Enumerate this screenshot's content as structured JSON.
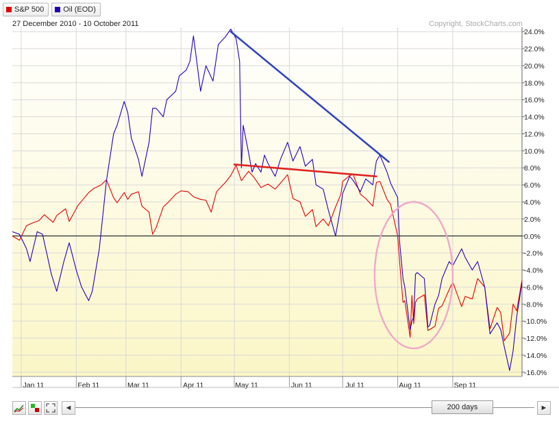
{
  "legend": {
    "items": [
      {
        "label": "S&P 500",
        "color": "#e00000"
      },
      {
        "label": "Oil (EOD)",
        "color": "#2200bb"
      }
    ]
  },
  "range_text": "27 December 2010 - 10 October 2011",
  "copyright": "Copyright, StockCharts.com",
  "controls": {
    "zoom_label": "200 days",
    "scroll_left": "◄",
    "scroll_right": "►",
    "icons": [
      "line-chart-icon",
      "color-toggle-icon",
      "fullscreen-icon"
    ]
  },
  "chart_data": {
    "type": "line",
    "ylim": [
      -16.5,
      24.5
    ],
    "y_ticks": [
      "24.0%",
      "22.0%",
      "20.0%",
      "18.0%",
      "16.0%",
      "14.0%",
      "12.0%",
      "10.0%",
      "8.0%",
      "6.0%",
      "4.0%",
      "2.0%",
      "0.0%",
      "-2.0%",
      "-4.0%",
      "-6.0%",
      "-8.0%",
      "-10.0%",
      "-12.0%",
      "-14.0%",
      "-16.0%"
    ],
    "y_tick_values": [
      24,
      22,
      20,
      18,
      16,
      14,
      12,
      10,
      8,
      6,
      4,
      2,
      0,
      -2,
      -4,
      -6,
      -8,
      -10,
      -12,
      -14,
      -16
    ],
    "x_range": [
      "2010-12-27",
      "2011-10-10"
    ],
    "x_ticks": [
      {
        "label": "Jan 11",
        "date": "2011-01-01"
      },
      {
        "label": "Feb 11",
        "date": "2011-02-01"
      },
      {
        "label": "Mar 11",
        "date": "2011-03-01"
      },
      {
        "label": "Apr 11",
        "date": "2011-04-01"
      },
      {
        "label": "May 11",
        "date": "2011-05-01"
      },
      {
        "label": "Jun 11",
        "date": "2011-06-01"
      },
      {
        "label": "Jul 11",
        "date": "2011-07-01"
      },
      {
        "label": "Aug 11",
        "date": "2011-08-01"
      },
      {
        "label": "Sep 11",
        "date": "2011-09-01"
      }
    ],
    "series": [
      {
        "name": "S&P 500",
        "color": "#e00000",
        "points": [
          [
            "2010-12-27",
            0.0
          ],
          [
            "2010-12-31",
            -0.5
          ],
          [
            "2011-01-04",
            1.2
          ],
          [
            "2011-01-07",
            1.5
          ],
          [
            "2011-01-11",
            1.8
          ],
          [
            "2011-01-14",
            2.5
          ],
          [
            "2011-01-19",
            1.6
          ],
          [
            "2011-01-21",
            2.4
          ],
          [
            "2011-01-26",
            3.2
          ],
          [
            "2011-01-28",
            1.7
          ],
          [
            "2011-02-02",
            3.6
          ],
          [
            "2011-02-04",
            4.1
          ],
          [
            "2011-02-08",
            5.1
          ],
          [
            "2011-02-11",
            5.6
          ],
          [
            "2011-02-15",
            6.0
          ],
          [
            "2011-02-18",
            6.6
          ],
          [
            "2011-02-22",
            4.5
          ],
          [
            "2011-02-24",
            3.9
          ],
          [
            "2011-02-28",
            5.1
          ],
          [
            "2011-03-02",
            4.3
          ],
          [
            "2011-03-04",
            4.9
          ],
          [
            "2011-03-08",
            5.2
          ],
          [
            "2011-03-10",
            3.5
          ],
          [
            "2011-03-14",
            2.8
          ],
          [
            "2011-03-16",
            0.2
          ],
          [
            "2011-03-18",
            1.0
          ],
          [
            "2011-03-22",
            3.4
          ],
          [
            "2011-03-25",
            4.0
          ],
          [
            "2011-03-29",
            4.9
          ],
          [
            "2011-04-01",
            5.3
          ],
          [
            "2011-04-05",
            5.2
          ],
          [
            "2011-04-08",
            4.6
          ],
          [
            "2011-04-12",
            4.3
          ],
          [
            "2011-04-15",
            4.2
          ],
          [
            "2011-04-18",
            2.8
          ],
          [
            "2011-04-21",
            5.2
          ],
          [
            "2011-04-26",
            6.3
          ],
          [
            "2011-04-29",
            7.1
          ],
          [
            "2011-05-02",
            8.3
          ],
          [
            "2011-05-05",
            6.5
          ],
          [
            "2011-05-09",
            7.6
          ],
          [
            "2011-05-12",
            6.9
          ],
          [
            "2011-05-16",
            5.7
          ],
          [
            "2011-05-20",
            6.1
          ],
          [
            "2011-05-24",
            5.5
          ],
          [
            "2011-05-27",
            6.2
          ],
          [
            "2011-05-31",
            7.2
          ],
          [
            "2011-06-03",
            4.4
          ],
          [
            "2011-06-07",
            4.0
          ],
          [
            "2011-06-10",
            2.3
          ],
          [
            "2011-06-14",
            3.1
          ],
          [
            "2011-06-16",
            1.1
          ],
          [
            "2011-06-20",
            2.0
          ],
          [
            "2011-06-23",
            1.2
          ],
          [
            "2011-06-27",
            3.4
          ],
          [
            "2011-06-30",
            4.9
          ],
          [
            "2011-07-01",
            6.4
          ],
          [
            "2011-07-05",
            7.1
          ],
          [
            "2011-07-07",
            7.2
          ],
          [
            "2011-07-11",
            4.9
          ],
          [
            "2011-07-14",
            4.4
          ],
          [
            "2011-07-18",
            3.5
          ],
          [
            "2011-07-20",
            6.3
          ],
          [
            "2011-07-22",
            6.4
          ],
          [
            "2011-07-26",
            4.3
          ],
          [
            "2011-07-28",
            3.7
          ],
          [
            "2011-08-01",
            0.0
          ],
          [
            "2011-08-02",
            -2.8
          ],
          [
            "2011-08-04",
            -7.8
          ],
          [
            "2011-08-05",
            -7.6
          ],
          [
            "2011-08-08",
            -11.9
          ],
          [
            "2011-08-09",
            -7.0
          ],
          [
            "2011-08-10",
            -10.3
          ],
          [
            "2011-08-11",
            -7.8
          ],
          [
            "2011-08-12",
            -7.4
          ],
          [
            "2011-08-16",
            -6.9
          ],
          [
            "2011-08-18",
            -11.1
          ],
          [
            "2011-08-19",
            -11.0
          ],
          [
            "2011-08-22",
            -10.6
          ],
          [
            "2011-08-24",
            -8.5
          ],
          [
            "2011-08-26",
            -8.2
          ],
          [
            "2011-08-30",
            -6.3
          ],
          [
            "2011-09-01",
            -5.4
          ],
          [
            "2011-09-06",
            -8.3
          ],
          [
            "2011-09-08",
            -7.1
          ],
          [
            "2011-09-12",
            -7.4
          ],
          [
            "2011-09-15",
            -5.0
          ],
          [
            "2011-09-19",
            -6.0
          ],
          [
            "2011-09-22",
            -10.9
          ],
          [
            "2011-09-26",
            -8.4
          ],
          [
            "2011-09-28",
            -9.0
          ],
          [
            "2011-09-30",
            -12.3
          ],
          [
            "2011-10-03",
            -11.4
          ],
          [
            "2011-10-05",
            -8.0
          ],
          [
            "2011-10-07",
            -8.8
          ],
          [
            "2011-10-10",
            -5.2
          ]
        ]
      },
      {
        "name": "Oil (EOD)",
        "color": "#2200bb",
        "points": [
          [
            "2010-12-27",
            0.5
          ],
          [
            "2010-12-31",
            0.2
          ],
          [
            "2011-01-04",
            -1.5
          ],
          [
            "2011-01-06",
            -3.0
          ],
          [
            "2011-01-10",
            0.5
          ],
          [
            "2011-01-13",
            0.2
          ],
          [
            "2011-01-18",
            -4.5
          ],
          [
            "2011-01-21",
            -6.5
          ],
          [
            "2011-01-25",
            -3.0
          ],
          [
            "2011-01-28",
            -0.8
          ],
          [
            "2011-02-01",
            -4.0
          ],
          [
            "2011-02-04",
            -6.0
          ],
          [
            "2011-02-08",
            -7.6
          ],
          [
            "2011-02-10",
            -6.5
          ],
          [
            "2011-02-14",
            -1.5
          ],
          [
            "2011-02-16",
            2.5
          ],
          [
            "2011-02-18",
            6.5
          ],
          [
            "2011-02-22",
            12.0
          ],
          [
            "2011-02-24",
            13.0
          ],
          [
            "2011-02-28",
            15.8
          ],
          [
            "2011-03-02",
            14.5
          ],
          [
            "2011-03-04",
            11.5
          ],
          [
            "2011-03-08",
            9.0
          ],
          [
            "2011-03-10",
            7.0
          ],
          [
            "2011-03-14",
            11.0
          ],
          [
            "2011-03-16",
            15.0
          ],
          [
            "2011-03-18",
            15.0
          ],
          [
            "2011-03-22",
            14.0
          ],
          [
            "2011-03-24",
            16.0
          ],
          [
            "2011-03-29",
            17.0
          ],
          [
            "2011-03-31",
            18.8
          ],
          [
            "2011-04-04",
            19.5
          ],
          [
            "2011-04-06",
            20.5
          ],
          [
            "2011-04-08",
            23.5
          ],
          [
            "2011-04-12",
            17.0
          ],
          [
            "2011-04-15",
            20.0
          ],
          [
            "2011-04-19",
            18.2
          ],
          [
            "2011-04-22",
            22.5
          ],
          [
            "2011-04-26",
            23.4
          ],
          [
            "2011-04-29",
            24.3
          ],
          [
            "2011-05-02",
            23.2
          ],
          [
            "2011-05-04",
            20.5
          ],
          [
            "2011-05-05",
            8.0
          ],
          [
            "2011-05-06",
            13.0
          ],
          [
            "2011-05-09",
            9.8
          ],
          [
            "2011-05-11",
            7.5
          ],
          [
            "2011-05-13",
            8.5
          ],
          [
            "2011-05-16",
            7.5
          ],
          [
            "2011-05-18",
            9.5
          ],
          [
            "2011-05-20",
            8.5
          ],
          [
            "2011-05-24",
            7.0
          ],
          [
            "2011-05-27",
            9.0
          ],
          [
            "2011-05-31",
            11.0
          ],
          [
            "2011-06-03",
            8.8
          ],
          [
            "2011-06-07",
            10.5
          ],
          [
            "2011-06-10",
            8.2
          ],
          [
            "2011-06-14",
            9.0
          ],
          [
            "2011-06-16",
            6.0
          ],
          [
            "2011-06-20",
            5.5
          ],
          [
            "2011-06-23",
            3.0
          ],
          [
            "2011-06-27",
            0.0
          ],
          [
            "2011-06-30",
            3.5
          ],
          [
            "2011-07-01",
            5.0
          ],
          [
            "2011-07-05",
            7.0
          ],
          [
            "2011-07-07",
            6.5
          ],
          [
            "2011-07-11",
            5.2
          ],
          [
            "2011-07-14",
            6.7
          ],
          [
            "2011-07-18",
            6.0
          ],
          [
            "2011-07-20",
            8.8
          ],
          [
            "2011-07-22",
            9.5
          ],
          [
            "2011-07-26",
            7.5
          ],
          [
            "2011-07-28",
            6.2
          ],
          [
            "2011-08-01",
            4.5
          ],
          [
            "2011-08-02",
            -0.5
          ],
          [
            "2011-08-04",
            -5.0
          ],
          [
            "2011-08-05",
            -6.0
          ],
          [
            "2011-08-08",
            -11.0
          ],
          [
            "2011-08-09",
            -10.0
          ],
          [
            "2011-08-10",
            -9.5
          ],
          [
            "2011-08-11",
            -4.5
          ],
          [
            "2011-08-12",
            -4.3
          ],
          [
            "2011-08-16",
            -5.0
          ],
          [
            "2011-08-18",
            -10.7
          ],
          [
            "2011-08-19",
            -10.5
          ],
          [
            "2011-08-22",
            -8.0
          ],
          [
            "2011-08-24",
            -7.0
          ],
          [
            "2011-08-26",
            -5.0
          ],
          [
            "2011-08-30",
            -3.0
          ],
          [
            "2011-09-01",
            -3.5
          ],
          [
            "2011-09-06",
            -1.5
          ],
          [
            "2011-09-08",
            -2.5
          ],
          [
            "2011-09-12",
            -4.0
          ],
          [
            "2011-09-15",
            -3.0
          ],
          [
            "2011-09-19",
            -6.0
          ],
          [
            "2011-09-22",
            -11.5
          ],
          [
            "2011-09-26",
            -10.2
          ],
          [
            "2011-09-28",
            -11.0
          ],
          [
            "2011-09-30",
            -13.0
          ],
          [
            "2011-10-03",
            -15.8
          ],
          [
            "2011-10-05",
            -13.5
          ],
          [
            "2011-10-07",
            -9.5
          ],
          [
            "2011-10-10",
            -5.5
          ]
        ]
      }
    ],
    "annotations": [
      {
        "kind": "trendline",
        "color": "#3344bb",
        "from": [
          "2011-04-29",
          24.0
        ],
        "to": [
          "2011-07-27",
          8.7
        ]
      },
      {
        "kind": "trendline",
        "color": "#dd2222",
        "from": [
          "2011-05-01",
          8.4
        ],
        "to": [
          "2011-07-20",
          7.0
        ]
      },
      {
        "kind": "ellipse",
        "color": "#f0a8c8",
        "center": [
          "2011-08-10",
          -4.6
        ],
        "rx_days": 22,
        "ry": 8.6
      }
    ],
    "grid": true,
    "legend_placement": "top-left"
  }
}
